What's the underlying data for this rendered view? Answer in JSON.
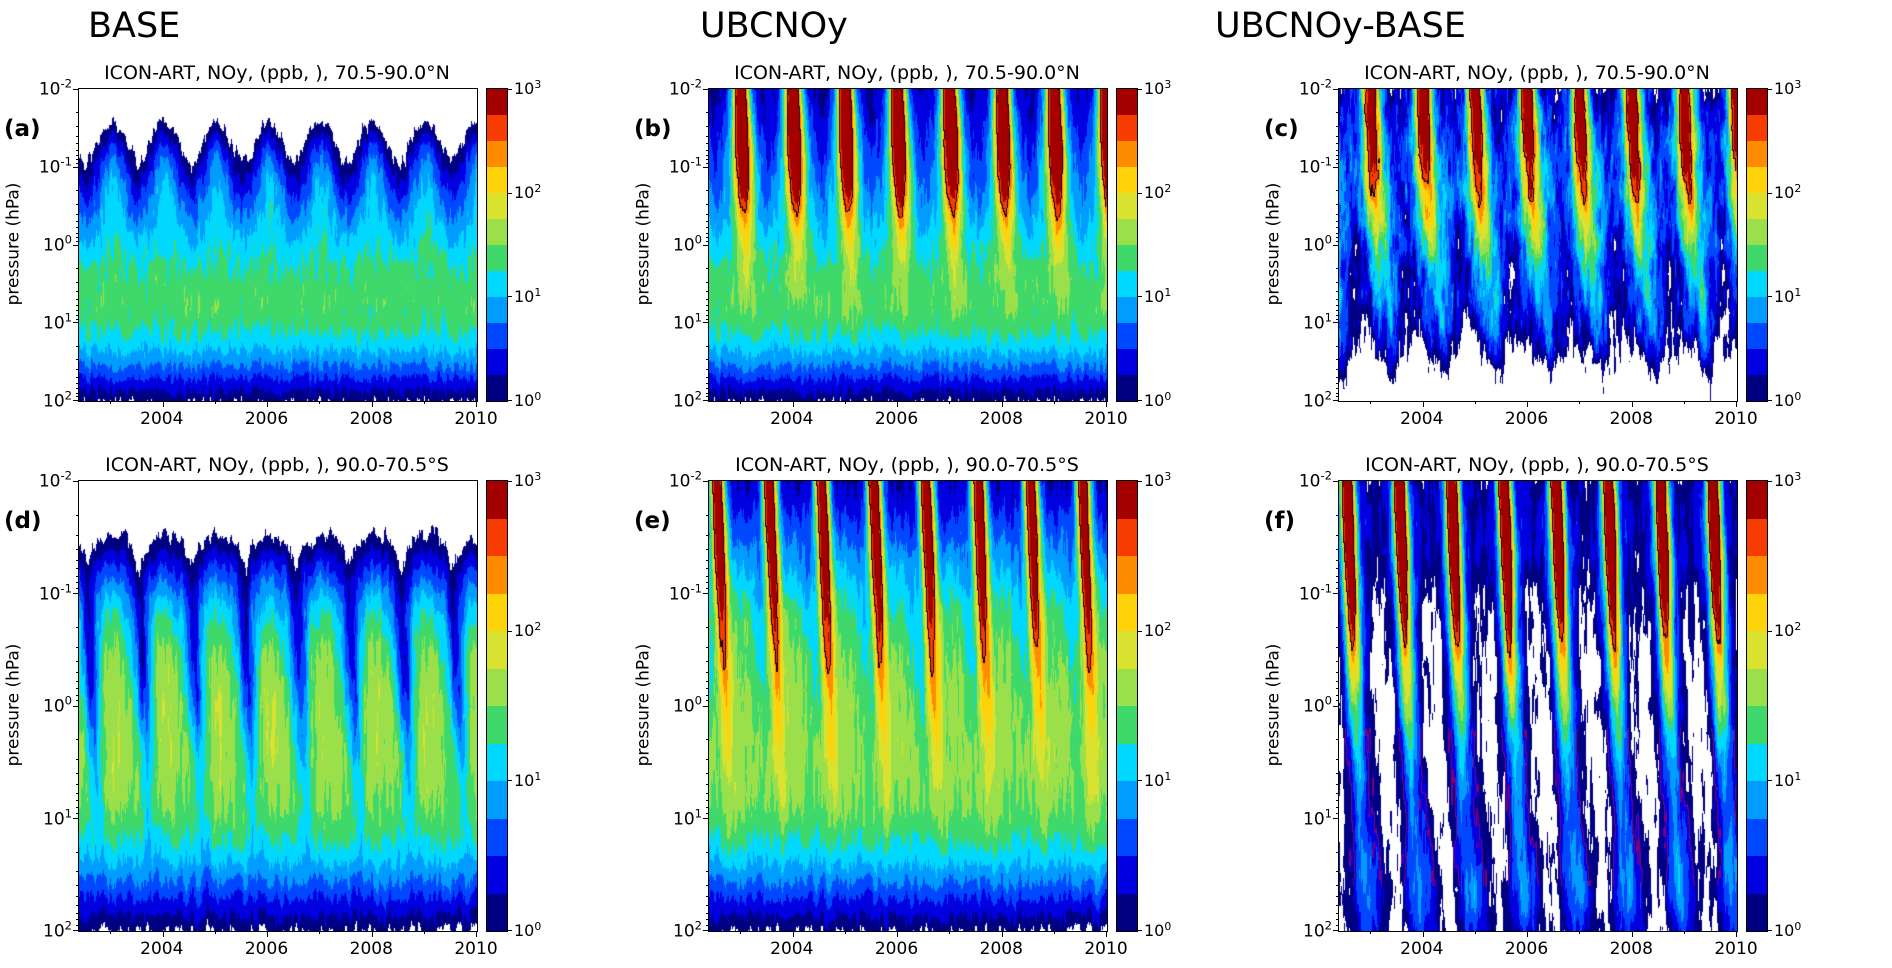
{
  "figure": {
    "columns": [
      "BASE",
      "UBCNOy",
      "UBCNOy-BASE"
    ]
  },
  "chart_data": {
    "type": "heatmap",
    "title": "ICON-ART simulated NOy (ppb) time-pressure sections over the polar caps: BASE run, UBCNOy run, and their difference",
    "x": {
      "label": "year",
      "range": [
        2002.4,
        2010.0
      ],
      "major_ticks": [
        "2004",
        "2006",
        "2008",
        "2010"
      ],
      "minor_tick_years": [
        2003,
        2005,
        2007,
        2009
      ]
    },
    "y": {
      "label": "pressure (hPa)",
      "scale": "log",
      "top_hpa": 0.01,
      "bottom_hpa": 100,
      "tick_exponents": [
        -2,
        -1,
        0,
        1,
        2
      ]
    },
    "colorbar": {
      "scale": "log",
      "units": "ppb",
      "min": 1,
      "max": 1000,
      "tick_exponents_top_to_bottom": [
        3,
        2,
        1,
        0
      ],
      "level_step_log10": 0.25,
      "colors": [
        "#000082",
        "#0000e0",
        "#0048ff",
        "#009cff",
        "#00d8ff",
        "#3fd96b",
        "#9be04a",
        "#d9e22f",
        "#ffd30a",
        "#ff8c00",
        "#f63c00",
        "#a50000"
      ]
    },
    "panels": [
      {
        "letter": "(a)",
        "row": 1,
        "column": "BASE",
        "title": "ICON-ART, NOy, (ppb, ), 70.5-90.0°N",
        "region": "70.5-90.0°N",
        "pattern": "Stratospheric NOy maximum ~15-25 ppb (green) near 3-10 hPa; annual scalloped blue upper boundary: winter NOy of 2-8 ppb reaches up to ~0.05 hPa, summer values <1 ppb (white) down to ~0.3 hPa; values fall to 1-3 ppb near 100 hPa.",
        "field_model": {
          "terms": [
            {
              "type": "gauss_q",
              "amp": 1.42,
              "center": 0.8,
              "width": 1.05
            },
            {
              "type": "gauss_q",
              "amp": -0.75,
              "center": 2.3,
              "width": 0.6
            },
            {
              "type": "gauss_q",
              "amp": -0.95,
              "center": -2.2,
              "width": 0.85
            },
            {
              "type": "pulse",
              "amp": 0.9,
              "phase": 0.0,
              "pw": 0.22,
              "qcenter": -1.05,
              "qwidth": 0.62,
              "tilt": 0.03,
              "qref": -2
            },
            {
              "type": "noise",
              "amp": 0.14,
              "fx": 22,
              "fq": 2.5
            },
            {
              "type": "noise",
              "amp": 0.07,
              "fx": 70,
              "fq": 7
            }
          ],
          "contours": []
        }
      },
      {
        "letter": "(b)",
        "row": 1,
        "column": "UBCNOy",
        "title": "ICON-ART, NOy, (ppb, ), 70.5-90.0°N",
        "region": "70.5-90.0°N",
        "pattern": "Same stratospheric background as BASE plus every winter a mesospheric NOy plume (>100-1000 ppb, orange/red, outlined black contour) descending from 0.01 hPa to ~1 hPa; 1-3 ppb (dark blue) mesosphere between plumes.",
        "field_model": {
          "terms": [
            {
              "type": "gauss_q",
              "amp": 1.42,
              "center": 0.8,
              "width": 1.05
            },
            {
              "type": "gauss_q",
              "amp": -0.75,
              "center": 2.3,
              "width": 0.6
            },
            {
              "type": "gauss_q",
              "amp": -0.38,
              "center": -2.2,
              "width": 0.8
            },
            {
              "type": "gauss_q",
              "amp": 0.5,
              "center": -2.0,
              "width": 0.9
            },
            {
              "type": "pulse",
              "amp": 0.9,
              "phase": 0.0,
              "pw": 0.22,
              "qcenter": -1.05,
              "qwidth": 0.62,
              "tilt": 0.03,
              "qref": -2
            },
            {
              "type": "pulse",
              "amp": 3.1,
              "phase": 0.0,
              "pw": 0.115,
              "qcenter": -2,
              "qwidth": 1.15,
              "tilt": 0.045,
              "qref": -2
            },
            {
              "type": "noise",
              "amp": 0.14,
              "fx": 22,
              "fq": 2.5
            },
            {
              "type": "noise",
              "amp": 0.07,
              "fx": 70,
              "fq": 7
            }
          ],
          "contours": [
            {
              "level": 2.5,
              "color": "#1a001a"
            }
          ]
        }
      },
      {
        "letter": "(c)",
        "row": 1,
        "column": "UBCNOy-BASE",
        "title": "ICON-ART, NOy, (ppb, ), 70.5-90.0°N",
        "region": "70.5-90.0°N",
        "pattern": "Difference field: winter descent plumes of +100-1000 ppb in the mesosphere tapering to +1-10 ppb near 10 hPa; mottled +1-10 ppb in the upper levels; mostly <1 ppb (white) with blue speckles in the lower stratosphere.",
        "field_model": {
          "terms": [
            {
              "type": "const",
              "amp": -0.25
            },
            {
              "type": "gauss_q",
              "amp": 0.55,
              "center": -1.2,
              "width": 0.95
            },
            {
              "type": "gauss_q",
              "amp": 0.25,
              "center": 1.1,
              "width": 0.45
            },
            {
              "type": "gauss_q",
              "amp": -0.5,
              "center": 2.2,
              "width": 0.6
            },
            {
              "type": "pulse",
              "amp": 3.0,
              "phase": 0.0,
              "pw": 0.115,
              "qcenter": -2,
              "qwidth": 1.1,
              "tilt": 0.05,
              "qref": -2
            },
            {
              "type": "pulse",
              "amp": 0.95,
              "phase": 0.0,
              "pw": 0.3,
              "qcenter": -0.2,
              "qwidth": 1.0,
              "tilt": 0.1,
              "qref": -2
            },
            {
              "type": "pulse",
              "amp": 0.5,
              "phase": 0.02,
              "pw": 0.085,
              "qcenter": 0.9,
              "qwidth": 0.8,
              "tilt": 0.12,
              "qref": -2
            },
            {
              "type": "noise",
              "amp": 0.32,
              "fx": 18,
              "fq": 3
            },
            {
              "type": "noise",
              "amp": 0.16,
              "fx": 60,
              "fq": 8
            }
          ],
          "contours": [
            {
              "level": 2.5,
              "color": "#1a001a"
            }
          ]
        }
      },
      {
        "letter": "(d)",
        "row": 2,
        "column": "BASE",
        "title": "ICON-ART, NOy, (ppb, ), 90.0-70.5°S",
        "region": "90.0-70.5°S",
        "pattern": "Antarctic cap: stratospheric maximum ~15-25 ppb; each austral winter a tilted dark-blue tongue of low NOy (1-3 ppb) descends from ~0.05 hPa to ~10 hPa, cutting into the green band; <1 ppb (white) mesosphere.",
        "field_model": {
          "terms": [
            {
              "type": "gauss_q",
              "amp": 1.45,
              "center": 0.85,
              "width": 1.0
            },
            {
              "type": "gauss_q",
              "amp": -0.8,
              "center": 2.3,
              "width": 0.6
            },
            {
              "type": "gauss_q",
              "amp": -1.05,
              "center": -2.1,
              "width": 0.78
            },
            {
              "type": "pulse",
              "amp": 1.15,
              "phase": 0.06,
              "pw": 0.33,
              "qcenter": -0.75,
              "qwidth": 0.78,
              "tilt": 0,
              "qref": -2
            },
            {
              "type": "pulse",
              "amp": 0.5,
              "phase": 0.55,
              "pw": 0.15,
              "qcenter": -1.15,
              "qwidth": 0.45,
              "tilt": 0.09,
              "qref": -1.3
            },
            {
              "type": "pulse",
              "amp": -0.8,
              "phase": 0.55,
              "pw": 0.1,
              "qcenter": -0.25,
              "qwidth": 0.85,
              "tilt": 0.09,
              "qref": -1.3
            },
            {
              "type": "noise",
              "amp": 0.15,
              "fx": 20,
              "fq": 2.5
            },
            {
              "type": "noise",
              "amp": 0.07,
              "fx": 65,
              "fq": 7
            }
          ],
          "contours": [
            {
              "level": 0.22,
              "color": "#2a0a33",
              "qmin": 0.0,
              "qmax": 1.1
            }
          ]
        }
      },
      {
        "letter": "(e)",
        "row": 2,
        "column": "UBCNOy",
        "title": "ICON-ART, NOy, (ppb, ), 90.0-70.5°S",
        "region": "90.0-70.5°S",
        "pattern": "With the NOy upper boundary condition the winter tongues become strong positive plumes: >1000 ppb (dark red) above 0.1 hPa descending as red/orange/yellow sheaths to ~3-10 hPa (black contour around cores); cyan/green background elsewhere.",
        "field_model": {
          "terms": [
            {
              "type": "gauss_q",
              "amp": 1.45,
              "center": 0.85,
              "width": 1.0
            },
            {
              "type": "gauss_q",
              "amp": -0.8,
              "center": 2.3,
              "width": 0.6
            },
            {
              "type": "gauss_q",
              "amp": -0.45,
              "center": -2.1,
              "width": 0.75
            },
            {
              "type": "gauss_q",
              "amp": 0.45,
              "center": -2.0,
              "width": 0.9
            },
            {
              "type": "pulse",
              "amp": 0.9,
              "phase": 0.06,
              "pw": 0.3,
              "qcenter": -0.75,
              "qwidth": 0.75,
              "tilt": 0,
              "qref": -2
            },
            {
              "type": "pulse",
              "amp": 3.2,
              "phase": 0.55,
              "pw": 0.105,
              "qcenter": -2,
              "qwidth": 1.25,
              "tilt": 0.075,
              "qref": -2
            },
            {
              "type": "noise",
              "amp": 0.15,
              "fx": 20,
              "fq": 2.5
            },
            {
              "type": "noise",
              "amp": 0.07,
              "fx": 65,
              "fq": 7
            }
          ],
          "contours": [
            {
              "level": 2.5,
              "color": "#1a001a"
            }
          ]
        }
      },
      {
        "letter": "(f)",
        "row": 2,
        "column": "UBCNOy-BASE",
        "title": "ICON-ART, NOy, (ppb, ), 90.0-70.5°S",
        "region": "90.0-70.5°S",
        "pattern": "Difference field: narrow winter plumes of +100-1000 ppb descending from the mesosphere to ~10 hPa with yellow/green/cyan sheaths (purple contour around lower tongue edges); dark-blue +1-3 ppb blobs near 30-100 hPa after each winter; white (<1 ppb) elsewhere.",
        "field_model": {
          "terms": [
            {
              "type": "const",
              "amp": -0.18
            },
            {
              "type": "gauss_q",
              "amp": 0.4,
              "center": -1.6,
              "width": 0.55
            },
            {
              "type": "pulse",
              "amp": 3.2,
              "phase": 0.55,
              "pw": 0.095,
              "qcenter": -2,
              "qwidth": 1.2,
              "tilt": 0.075,
              "qref": -2
            },
            {
              "type": "pulse",
              "amp": 1.1,
              "phase": 0.55,
              "pw": 0.16,
              "qcenter": -0.3,
              "qwidth": 1.1,
              "tilt": 0.09,
              "qref": -2
            },
            {
              "type": "pulse",
              "amp": 0.8,
              "phase": 0.78,
              "pw": 0.22,
              "qcenter": 1.65,
              "qwidth": 0.45,
              "tilt": 0.05,
              "qref": -2
            },
            {
              "type": "noise",
              "amp": 0.2,
              "fx": 18,
              "fq": 3
            },
            {
              "type": "noise",
              "amp": 0.1,
              "fx": 55,
              "fq": 8
            }
          ],
          "contours": [
            {
              "level": 2.5,
              "color": "#1a001a"
            },
            {
              "level": 0.3,
              "color": "#7a0080",
              "qmin": 0.2,
              "qmax": 1.6
            }
          ]
        }
      }
    ]
  }
}
